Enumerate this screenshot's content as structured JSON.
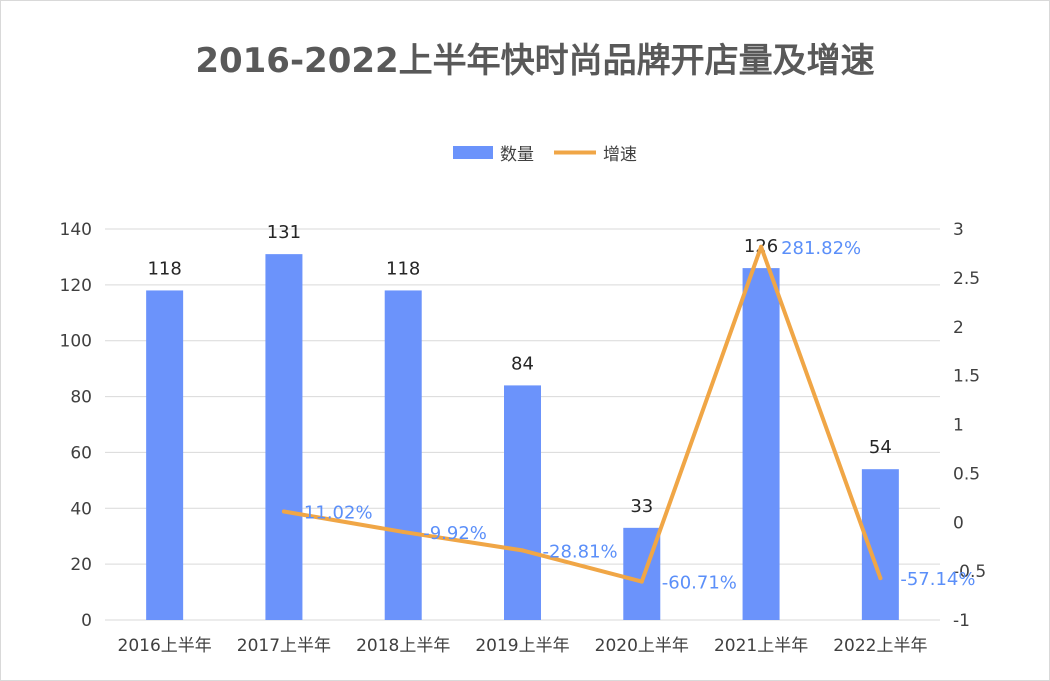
{
  "chart_data": {
    "type": "bar+line",
    "title": "2016-2022上半年快时尚品牌开店量及增速",
    "categories": [
      "2016上半年",
      "2017上半年",
      "2018上半年",
      "2019上半年",
      "2020上半年",
      "2021上半年",
      "2022上半年"
    ],
    "series": [
      {
        "name": "数量",
        "type": "bar",
        "axis": "left",
        "color": "#6b93fb",
        "values": [
          118,
          131,
          118,
          84,
          33,
          126,
          54
        ],
        "labels": [
          "118",
          "131",
          "118",
          "84",
          "33",
          "126",
          "54"
        ]
      },
      {
        "name": "增速",
        "type": "line",
        "axis": "right",
        "color": "#f0a646",
        "values": [
          null,
          0.1102,
          -0.0992,
          -0.2881,
          -0.6071,
          2.8182,
          -0.5714
        ],
        "labels": [
          "",
          "11.02%",
          "-9.92%",
          "-28.81%",
          "-60.71%",
          "281.82%",
          "-57.14%"
        ]
      }
    ],
    "left_axis": {
      "min": 0,
      "max": 140,
      "ticks": [
        "0",
        "20",
        "40",
        "60",
        "80",
        "100",
        "120",
        "140"
      ]
    },
    "right_axis": {
      "min": -1,
      "max": 3,
      "ticks": [
        "-1",
        "-0.5",
        "0",
        "0.5",
        "1",
        "1.5",
        "2",
        "2.5",
        "3"
      ]
    },
    "legend_position": "top",
    "grid": true
  }
}
